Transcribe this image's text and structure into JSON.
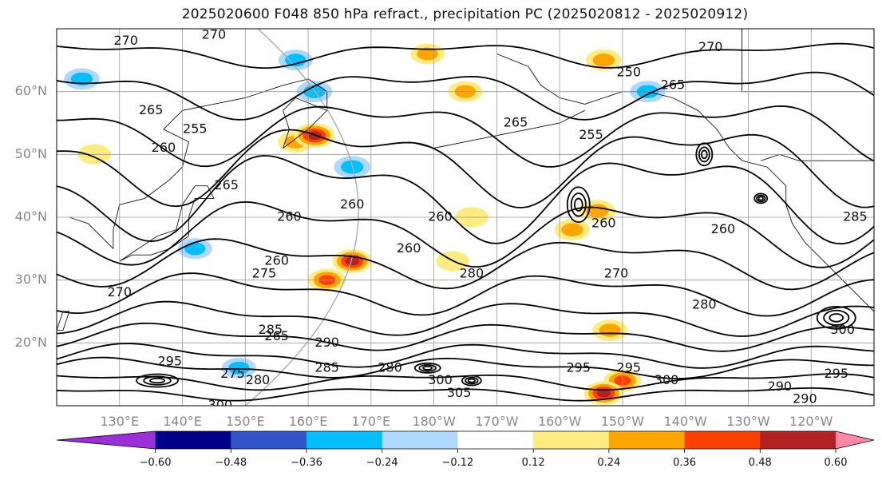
{
  "title": "2025020600 F048 850 hPa refract., precipitation PC (2025020812 - 2025020912)",
  "chart_data": {
    "type": "heatmap",
    "title": "2025020600 F048 850 hPa refract., precipitation PC (2025020812 - 2025020912)",
    "map": {
      "lon_range": [
        120,
        250
      ],
      "lat_range": [
        10,
        70
      ],
      "lat_ticks": [
        "20°N",
        "30°N",
        "40°N",
        "50°N",
        "60°N"
      ],
      "lat_tick_values": [
        20,
        30,
        40,
        50,
        60
      ],
      "lon_ticks": [
        "130°E",
        "140°E",
        "150°E",
        "160°E",
        "170°E",
        "180°W",
        "170°W",
        "160°W",
        "150°W",
        "140°W",
        "130°W",
        "120°W"
      ],
      "lon_tick_values": [
        130,
        140,
        150,
        160,
        170,
        180,
        190,
        200,
        210,
        220,
        230,
        240
      ],
      "grid": true
    },
    "contour_labels": [
      "270",
      "270",
      "265",
      "270",
      "265",
      "260",
      "255",
      "260",
      "265",
      "250",
      "265",
      "255",
      "260",
      "260",
      "260",
      "260",
      "260",
      "260",
      "275",
      "280",
      "270",
      "270",
      "280",
      "285",
      "290",
      "295",
      "280",
      "285",
      "265",
      "280",
      "300",
      "305",
      "300",
      "295",
      "295",
      "300",
      "290",
      "300",
      "285",
      "290",
      "295",
      "275"
    ],
    "precip_blobs": [
      {
        "lon": 163,
        "lat": 30,
        "value": 0.4
      },
      {
        "lon": 167,
        "lat": 33,
        "value": 0.48
      },
      {
        "lon": 158,
        "lat": 52,
        "value": 0.3
      },
      {
        "lon": 161,
        "lat": 53,
        "value": 0.55
      },
      {
        "lon": 210,
        "lat": 14,
        "value": 0.4
      },
      {
        "lon": 207,
        "lat": 12,
        "value": 0.48
      },
      {
        "lon": 207,
        "lat": 65,
        "value": 0.3
      },
      {
        "lon": 185,
        "lat": 60,
        "value": 0.25
      },
      {
        "lon": 186,
        "lat": 40,
        "value": 0.2
      },
      {
        "lon": 183,
        "lat": 33,
        "value": 0.2
      },
      {
        "lon": 202,
        "lat": 38,
        "value": 0.3
      },
      {
        "lon": 206,
        "lat": 41,
        "value": 0.35
      },
      {
        "lon": 208,
        "lat": 22,
        "value": 0.3
      },
      {
        "lon": 126,
        "lat": 50,
        "value": 0.2
      },
      {
        "lon": 149,
        "lat": 16,
        "value": -0.25
      },
      {
        "lon": 167,
        "lat": 48,
        "value": -0.35
      },
      {
        "lon": 161,
        "lat": 60,
        "value": -0.3
      },
      {
        "lon": 158,
        "lat": 65,
        "value": -0.25
      },
      {
        "lon": 142,
        "lat": 35,
        "value": -0.25
      },
      {
        "lon": 124,
        "lat": 62,
        "value": -0.3
      },
      {
        "lon": 214,
        "lat": 60,
        "value": -0.3
      },
      {
        "lon": 179,
        "lat": 66,
        "value": 0.25
      }
    ],
    "colorbar": {
      "ticks": [
        "−0.60",
        "−0.48",
        "−0.36",
        "−0.24",
        "−0.12",
        "0.12",
        "0.24",
        "0.36",
        "0.48",
        "0.60"
      ],
      "tick_values": [
        -0.6,
        -0.48,
        -0.36,
        -0.24,
        -0.12,
        0.12,
        0.24,
        0.36,
        0.48,
        0.6
      ],
      "colors": [
        "#9b30d9",
        "#00008b",
        "#3355cc",
        "#00bfff",
        "#add8ff",
        "#ffffff",
        "#ffeb80",
        "#ffa500",
        "#ff4000",
        "#b22222",
        "#ff88aa"
      ],
      "extend": "both"
    }
  }
}
